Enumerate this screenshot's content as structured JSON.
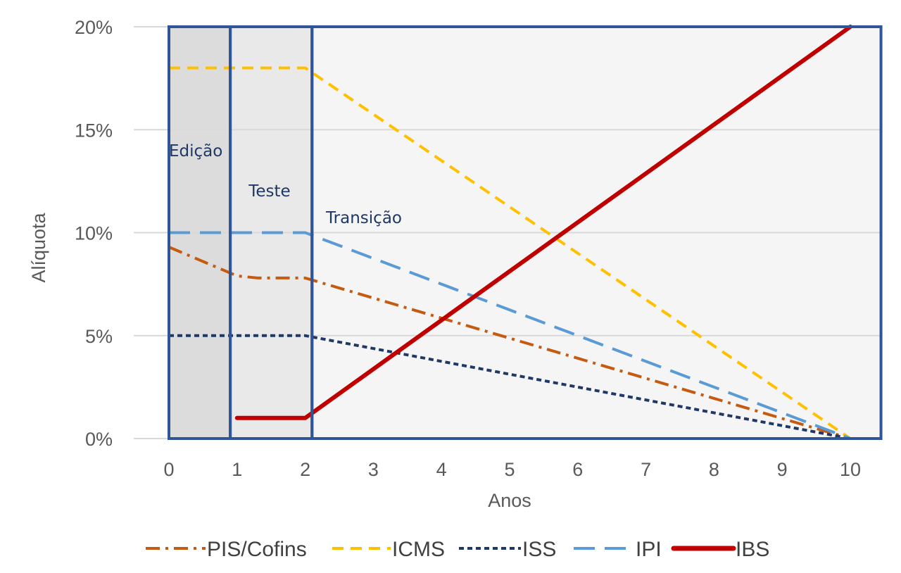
{
  "chart_data": {
    "type": "line",
    "xlabel": "Anos",
    "ylabel": "Alíquota",
    "xlim": [
      0,
      10
    ],
    "ylim": [
      0,
      20
    ],
    "x_ticks": [
      "0",
      "1",
      "2",
      "3",
      "4",
      "5",
      "6",
      "7",
      "8",
      "9",
      "10"
    ],
    "y_ticks": [
      "0%",
      "5%",
      "10%",
      "15%",
      "20%"
    ],
    "grid": "horizontal",
    "legend_position": "bottom",
    "phases": [
      {
        "name": "edicao",
        "label": "Edição",
        "start": 0,
        "end": 0.9,
        "color": "#dcdcdc"
      },
      {
        "name": "teste",
        "label": "Teste",
        "start": 0.9,
        "end": 2.1,
        "color": "#e9e9e9"
      },
      {
        "name": "transicao",
        "label": "Transição",
        "start": 2.1,
        "end": 10.45,
        "color": "#f5f5f5"
      }
    ],
    "series": [
      {
        "name": "PIS/Cofins",
        "color": "#c55a11",
        "style": "dashdot",
        "width": 4,
        "x": [
          0,
          1,
          1.3,
          2,
          10
        ],
        "values": [
          9.3,
          7.9,
          7.8,
          7.8,
          0
        ]
      },
      {
        "name": "ICMS",
        "color": "#ffc000",
        "style": "dash",
        "width": 4,
        "x": [
          0,
          2,
          10
        ],
        "values": [
          18,
          18,
          0
        ]
      },
      {
        "name": "ISS",
        "color": "#203864",
        "style": "dot",
        "width": 4,
        "x": [
          0,
          2,
          10
        ],
        "values": [
          5,
          5,
          0
        ]
      },
      {
        "name": "IPI",
        "color": "#5b9bd5",
        "style": "longdash",
        "width": 4,
        "x": [
          0,
          2,
          10
        ],
        "values": [
          10,
          10,
          0
        ]
      },
      {
        "name": "IBS",
        "color": "#c00000",
        "style": "solid",
        "width": 6,
        "x": [
          1,
          2,
          10
        ],
        "values": [
          1,
          1,
          20
        ]
      }
    ]
  }
}
